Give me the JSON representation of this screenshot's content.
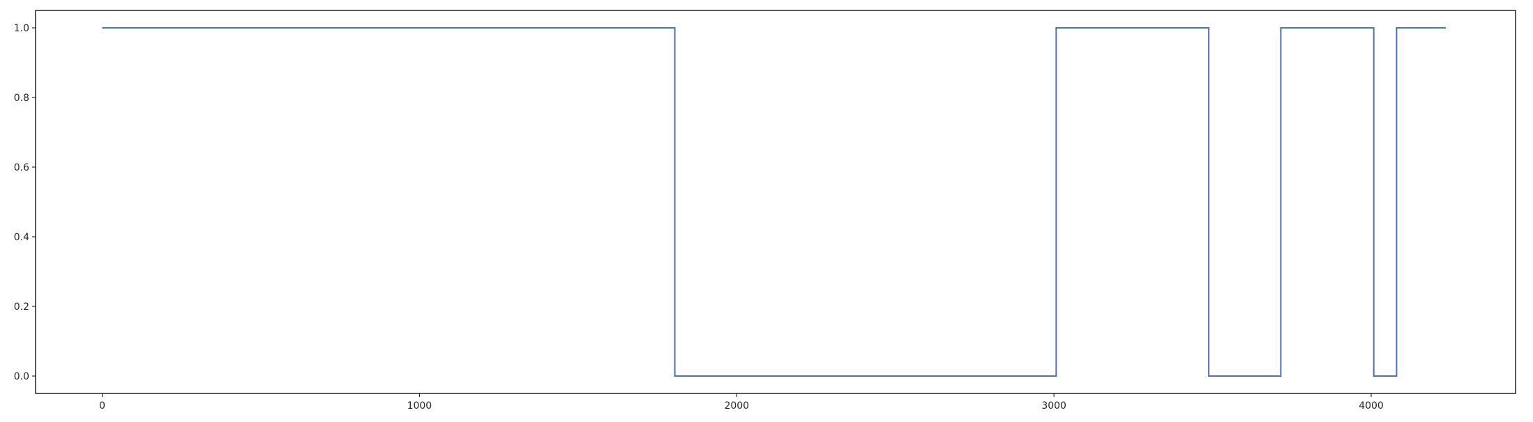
{
  "chart_data": {
    "type": "line",
    "drawstyle": "steps",
    "title": "",
    "xlabel": "",
    "ylabel": "",
    "xlim": [
      -210,
      4455
    ],
    "ylim": [
      -0.05,
      1.05
    ],
    "xticks": [
      0,
      1000,
      2000,
      3000,
      4000
    ],
    "xtick_labels": [
      "0",
      "1000",
      "2000",
      "3000",
      "4000"
    ],
    "yticks": [
      0.0,
      0.2,
      0.4,
      0.6,
      0.8,
      1.0
    ],
    "ytick_labels": [
      "0.0",
      "0.2",
      "0.4",
      "0.6",
      "0.8",
      "1.0"
    ],
    "grid": false,
    "legend": false,
    "series": [
      {
        "color": "#4c72b0",
        "x": [
          0,
          1805,
          1805,
          3007,
          3007,
          3488,
          3488,
          3715,
          3715,
          4008,
          4008,
          4080,
          4080,
          4235
        ],
        "y": [
          1,
          1,
          0,
          0,
          1,
          1,
          0,
          0,
          1,
          1,
          0,
          0,
          1,
          1
        ]
      }
    ]
  }
}
